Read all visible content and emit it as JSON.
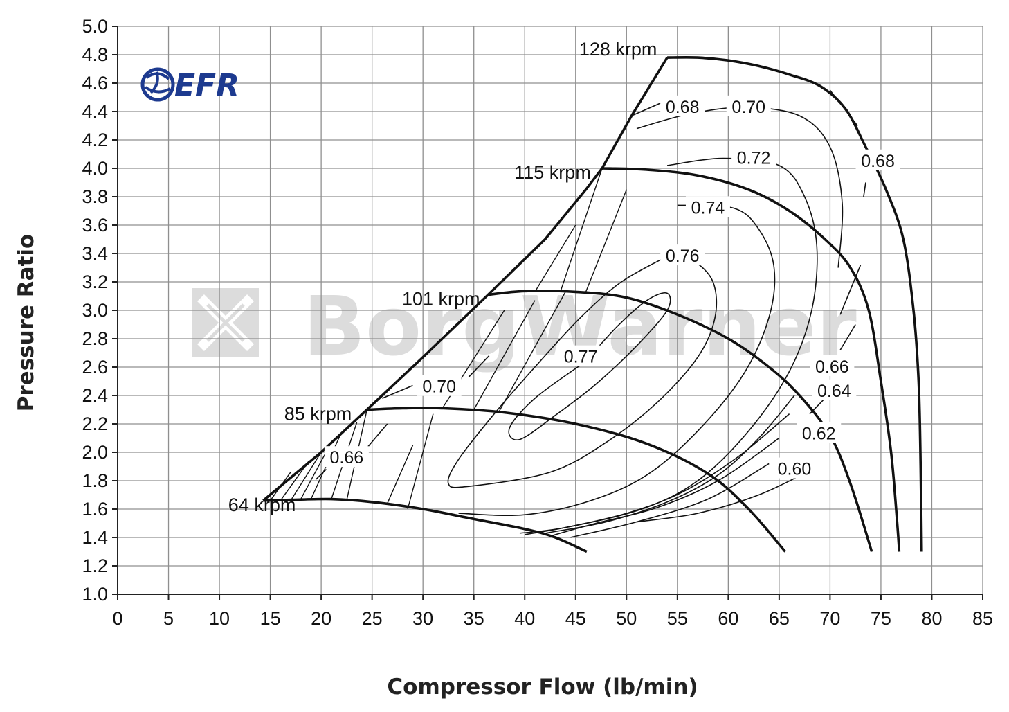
{
  "chart_data": {
    "type": "line",
    "title": "",
    "xlabel": "Compressor Flow (lb/min)",
    "ylabel": "Pressure Ratio",
    "xlim": [
      0,
      85
    ],
    "ylim": [
      1.0,
      5.0
    ],
    "x_ticks": [
      0,
      5,
      10,
      15,
      20,
      25,
      30,
      35,
      40,
      45,
      50,
      55,
      60,
      65,
      70,
      75,
      80,
      85
    ],
    "y_ticks": [
      1.0,
      1.2,
      1.4,
      1.6,
      1.8,
      2.0,
      2.2,
      2.4,
      2.6,
      2.8,
      3.0,
      3.2,
      3.4,
      3.6,
      3.8,
      4.0,
      4.2,
      4.4,
      4.6,
      4.8,
      5.0
    ],
    "x_tick_labels": [
      "0",
      "5",
      "10",
      "15",
      "20",
      "25",
      "30",
      "35",
      "40",
      "45",
      "50",
      "55",
      "60",
      "65",
      "70",
      "75",
      "80",
      "85"
    ],
    "y_tick_labels": [
      "1.0",
      "1.2",
      "1.4",
      "1.6",
      "1.8",
      "2.0",
      "2.2",
      "2.4",
      "2.6",
      "2.8",
      "3.0",
      "3.2",
      "3.4",
      "3.6",
      "3.8",
      "4.0",
      "4.2",
      "4.4",
      "4.6",
      "4.8",
      "5.0"
    ],
    "grid": true,
    "logo_text": "EFR",
    "watermark_text": "BorgWarner",
    "surge_line": [
      [
        14.3,
        1.66
      ],
      [
        20,
        2.0
      ],
      [
        24.5,
        2.3
      ],
      [
        30,
        2.67
      ],
      [
        36.4,
        3.11
      ],
      [
        42,
        3.5
      ],
      [
        46,
        3.85
      ],
      [
        47.6,
        4.0
      ],
      [
        50.5,
        4.37
      ],
      [
        54,
        4.78
      ]
    ],
    "speed_lines": [
      {
        "label": "64 krpm",
        "label_pos": [
          17.5,
          1.63
        ],
        "points": [
          [
            14.3,
            1.66
          ],
          [
            17,
            1.665
          ],
          [
            21,
            1.67
          ],
          [
            25,
            1.65
          ],
          [
            30,
            1.6
          ],
          [
            35,
            1.53
          ],
          [
            40,
            1.46
          ],
          [
            43,
            1.4
          ],
          [
            46.1,
            1.3
          ]
        ]
      },
      {
        "label": "85 krpm",
        "label_pos": [
          23,
          2.27
        ],
        "points": [
          [
            24.5,
            2.3
          ],
          [
            28,
            2.31
          ],
          [
            32,
            2.31
          ],
          [
            38,
            2.28
          ],
          [
            45,
            2.2
          ],
          [
            52,
            2.06
          ],
          [
            58,
            1.85
          ],
          [
            62,
            1.6
          ],
          [
            65.6,
            1.3
          ]
        ]
      },
      {
        "label": "101 krpm",
        "label_pos": [
          35.6,
          3.08
        ],
        "points": [
          [
            36.4,
            3.11
          ],
          [
            40,
            3.135
          ],
          [
            45,
            3.13
          ],
          [
            50,
            3.09
          ],
          [
            55,
            2.97
          ],
          [
            60,
            2.8
          ],
          [
            64,
            2.6
          ],
          [
            67,
            2.4
          ],
          [
            70,
            2.12
          ],
          [
            72,
            1.78
          ],
          [
            74.1,
            1.3
          ]
        ]
      },
      {
        "label": "115 krpm",
        "label_pos": [
          46.5,
          3.97
        ],
        "points": [
          [
            47.6,
            4.0
          ],
          [
            52,
            3.99
          ],
          [
            57,
            3.95
          ],
          [
            62,
            3.85
          ],
          [
            66,
            3.7
          ],
          [
            69.5,
            3.5
          ],
          [
            72,
            3.3
          ],
          [
            73.8,
            3.0
          ],
          [
            75,
            2.5
          ],
          [
            76,
            2.0
          ],
          [
            76.6,
            1.5
          ],
          [
            76.8,
            1.3
          ]
        ]
      },
      {
        "label": "128 krpm",
        "label_pos": [
          53,
          4.84
        ],
        "points": [
          [
            54,
            4.78
          ],
          [
            57,
            4.78
          ],
          [
            60,
            4.76
          ],
          [
            63,
            4.72
          ],
          [
            66,
            4.66
          ],
          [
            69,
            4.58
          ],
          [
            71.5,
            4.42
          ],
          [
            73.5,
            4.15
          ],
          [
            75.5,
            3.85
          ],
          [
            77.2,
            3.5
          ],
          [
            78.2,
            3.0
          ],
          [
            78.7,
            2.5
          ],
          [
            78.9,
            1.9
          ],
          [
            79.0,
            1.3
          ]
        ]
      }
    ],
    "efficiency_contours": [
      {
        "label": "0.77",
        "label_pos": [
          45.5,
          2.67
        ],
        "points": [
          [
            46,
            2.64
          ],
          [
            49,
            2.88
          ],
          [
            52,
            3.07
          ],
          [
            54,
            3.12
          ],
          [
            54,
            3.0
          ],
          [
            51,
            2.75
          ],
          [
            47,
            2.48
          ],
          [
            43,
            2.26
          ],
          [
            39.5,
            2.09
          ],
          [
            38.5,
            2.17
          ],
          [
            41,
            2.38
          ],
          [
            46,
            2.64
          ]
        ]
      },
      {
        "label": "0.76",
        "label_pos": [
          55.5,
          3.38
        ],
        "points": [
          [
            54,
            3.38
          ],
          [
            56.5,
            3.35
          ],
          [
            58.5,
            3.2
          ],
          [
            58.7,
            2.95
          ],
          [
            57,
            2.67
          ],
          [
            53,
            2.35
          ],
          [
            48,
            2.07
          ],
          [
            42.5,
            1.86
          ],
          [
            34.5,
            1.76
          ],
          [
            32.5,
            1.78
          ],
          [
            33.5,
            1.95
          ],
          [
            37,
            2.27
          ],
          [
            41,
            2.6
          ],
          [
            45.5,
            2.95
          ],
          [
            49.5,
            3.2
          ],
          [
            54,
            3.38
          ]
        ]
      },
      {
        "label": "0.74",
        "label_pos": [
          58,
          3.72
        ],
        "points": [
          [
            55,
            3.74
          ],
          [
            60.5,
            3.72
          ],
          [
            63,
            3.57
          ],
          [
            64.5,
            3.3
          ],
          [
            64,
            2.95
          ],
          [
            61.5,
            2.55
          ],
          [
            57,
            2.15
          ],
          [
            52,
            1.84
          ],
          [
            46.5,
            1.66
          ],
          [
            40,
            1.56
          ],
          [
            33.5,
            1.57
          ]
        ]
      },
      {
        "label": "0.72",
        "label_pos": [
          62.5,
          4.07
        ],
        "points": [
          [
            54,
            4.02
          ],
          [
            59.5,
            4.07
          ],
          [
            65,
            4.02
          ],
          [
            67.5,
            3.8
          ],
          [
            68.7,
            3.45
          ],
          [
            68.2,
            3.0
          ],
          [
            66,
            2.57
          ],
          [
            62,
            2.15
          ],
          [
            57,
            1.8
          ],
          [
            51.5,
            1.6
          ],
          [
            44,
            1.47
          ],
          [
            39.5,
            1.43
          ]
        ]
      },
      {
        "label": "0.70",
        "label_pos": [
          62,
          4.43
        ],
        "points": [
          [
            51,
            4.28
          ],
          [
            56,
            4.38
          ],
          [
            61.5,
            4.43
          ],
          [
            67,
            4.37
          ],
          [
            70,
            4.15
          ],
          [
            71.2,
            3.75
          ],
          [
            70.8,
            3.3
          ]
        ]
      },
      {
        "label": "0.68",
        "label_pos": [
          74.7,
          4.05
        ],
        "points": [
          [
            70,
            4.55
          ],
          [
            72.7,
            4.3
          ]
        ]
      },
      {
        "label": "0.68",
        "label_pos": [
          74.7,
          4.05
        ],
        "points": [
          [
            73.5,
            3.9
          ],
          [
            73.3,
            3.8
          ]
        ]
      },
      {
        "label": "0.68",
        "label_pos": [
          55.5,
          4.43
        ],
        "points": [
          [
            50.5,
            4.37
          ],
          [
            54,
            4.48
          ]
        ]
      },
      {
        "label": "0.66",
        "label_pos": [
          70.2,
          2.6
        ],
        "points": [
          [
            73,
            3.32
          ],
          [
            71,
            2.97
          ]
        ]
      },
      {
        "label": "0.66",
        "label_pos": [
          70.2,
          2.6
        ],
        "points": [
          [
            66.5,
            2.4
          ],
          [
            63,
            2.1
          ],
          [
            59,
            1.84
          ],
          [
            54,
            1.65
          ],
          [
            48,
            1.51
          ],
          [
            42,
            1.43
          ]
        ]
      },
      {
        "label": "0.64",
        "label_pos": [
          70.4,
          2.43
        ],
        "points": [
          [
            72.5,
            2.9
          ],
          [
            71,
            2.72
          ]
        ]
      },
      {
        "label": "0.64",
        "label_pos": [
          70.4,
          2.43
        ],
        "points": [
          [
            66,
            2.27
          ],
          [
            61,
            1.97
          ],
          [
            55.5,
            1.72
          ],
          [
            50,
            1.57
          ],
          [
            44,
            1.47
          ],
          [
            40,
            1.42
          ]
        ]
      },
      {
        "label": "0.62",
        "label_pos": [
          68.9,
          2.13
        ],
        "points": [
          [
            69.5,
            2.38
          ],
          [
            68,
            2.27
          ]
        ]
      },
      {
        "label": "0.62",
        "label_pos": [
          68.9,
          2.13
        ],
        "points": [
          [
            65,
            2.1
          ],
          [
            59,
            1.8
          ],
          [
            53,
            1.61
          ],
          [
            47,
            1.5
          ],
          [
            42.5,
            1.41
          ]
        ]
      },
      {
        "label": "0.60",
        "label_pos": [
          66.5,
          1.88
        ],
        "points": [
          [
            64,
            1.92
          ],
          [
            58,
            1.67
          ],
          [
            51,
            1.51
          ],
          [
            44.5,
            1.4
          ]
        ]
      },
      {
        "label": "0.60",
        "label_pos": [
          66.5,
          1.88
        ],
        "points": [
          [
            68,
            1.87
          ],
          [
            63,
            1.7
          ],
          [
            57,
            1.57
          ],
          [
            51,
            1.51
          ]
        ]
      },
      {
        "label": "0.70",
        "label_pos": [
          31.6,
          2.46
        ],
        "points": [
          [
            26,
            2.38
          ],
          [
            29,
            2.47
          ]
        ]
      },
      {
        "label": "0.70",
        "label_pos": [
          31.6,
          2.46
        ],
        "points": [
          [
            34.5,
            2.53
          ],
          [
            36.5,
            2.68
          ]
        ]
      },
      {
        "label": "0.66",
        "label_pos": [
          22.5,
          1.96
        ],
        "points": [
          [
            19.5,
            1.81
          ],
          [
            20.5,
            1.88
          ]
        ]
      },
      {
        "label": "0.66",
        "label_pos": [
          22.5,
          1.96
        ],
        "points": [
          [
            24.6,
            2.04
          ],
          [
            26.5,
            2.2
          ]
        ]
      }
    ],
    "surge_hatch": [
      [
        [
          15,
          1.66
        ],
        [
          17,
          1.86
        ]
      ],
      [
        [
          16,
          1.66
        ],
        [
          18.8,
          1.94
        ]
      ],
      [
        [
          17,
          1.66
        ],
        [
          20,
          2.0
        ]
      ],
      [
        [
          18,
          1.67
        ],
        [
          21,
          2.07
        ]
      ],
      [
        [
          19,
          1.67
        ],
        [
          22,
          2.14
        ]
      ],
      [
        [
          21,
          1.67
        ],
        [
          23.5,
          2.21
        ]
      ],
      [
        [
          22.5,
          1.66
        ],
        [
          24.5,
          2.3
        ]
      ],
      [
        [
          26.5,
          1.64
        ],
        [
          29,
          2.05
        ]
      ],
      [
        [
          28.5,
          1.6
        ],
        [
          31,
          2.27
        ]
      ],
      [
        [
          32,
          2.32
        ],
        [
          38,
          3.0
        ]
      ],
      [
        [
          35,
          2.3
        ],
        [
          41,
          3.07
        ]
      ],
      [
        [
          37.5,
          2.29
        ],
        [
          44,
          3.13
        ]
      ],
      [
        [
          41,
          3.13
        ],
        [
          45,
          3.6
        ]
      ],
      [
        [
          43.5,
          3.13
        ],
        [
          47.6,
          4.0
        ]
      ],
      [
        [
          46,
          3.13
        ],
        [
          50,
          3.85
        ]
      ]
    ],
    "hatch_labels": [
      "0.70",
      "0.66"
    ]
  }
}
